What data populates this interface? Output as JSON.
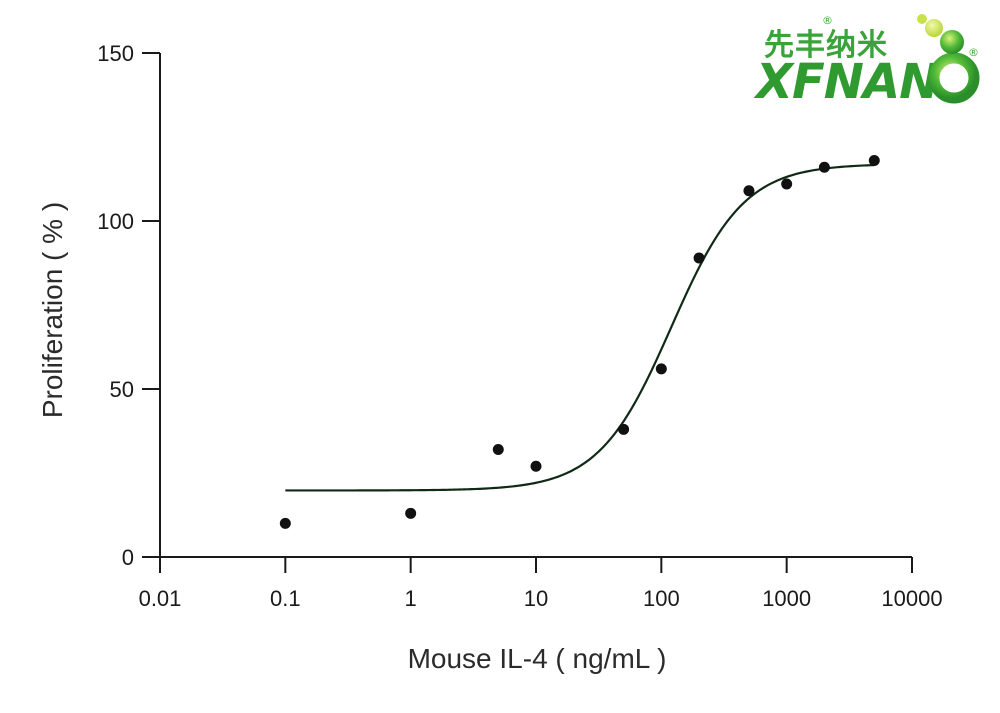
{
  "chart_data": {
    "type": "scatter",
    "title": "",
    "xlabel": "Mouse IL-4 ( ng/mL )",
    "ylabel": "Proliferation ( % )",
    "x_scale": "log",
    "xlim": [
      0.01,
      10000
    ],
    "ylim": [
      0,
      150
    ],
    "x_ticks": [
      0.01,
      0.1,
      1,
      10,
      100,
      1000,
      10000
    ],
    "x_tick_labels": [
      "0.01",
      "0.1",
      "1",
      "10",
      "100",
      "1000",
      "10000"
    ],
    "y_ticks": [
      0,
      50,
      100,
      150
    ],
    "y_tick_labels": [
      "0",
      "50",
      "100",
      "150"
    ],
    "grid": false,
    "series": [
      {
        "points": [
          {
            "x": 0.1,
            "y": 10
          },
          {
            "x": 1,
            "y": 13
          },
          {
            "x": 5,
            "y": 32
          },
          {
            "x": 10,
            "y": 27
          },
          {
            "x": 50,
            "y": 38
          },
          {
            "x": 100,
            "y": 56
          },
          {
            "x": 200,
            "y": 89
          },
          {
            "x": 500,
            "y": 109
          },
          {
            "x": 1000,
            "y": 111
          },
          {
            "x": 2000,
            "y": 116
          },
          {
            "x": 5000,
            "y": 118
          }
        ],
        "fit": {
          "model": "4PL",
          "bottom": 19.8,
          "top": 117,
          "ec50": 120,
          "hill": 1.5,
          "x_range": [
            0.1,
            5000
          ]
        }
      }
    ],
    "colors": {
      "points": "#111111",
      "curve": "#102a17",
      "axis": "#1a1a1a"
    }
  },
  "logo": {
    "name_cn": "先丰纳米",
    "name_en": "XFNAN",
    "registered": "®"
  }
}
